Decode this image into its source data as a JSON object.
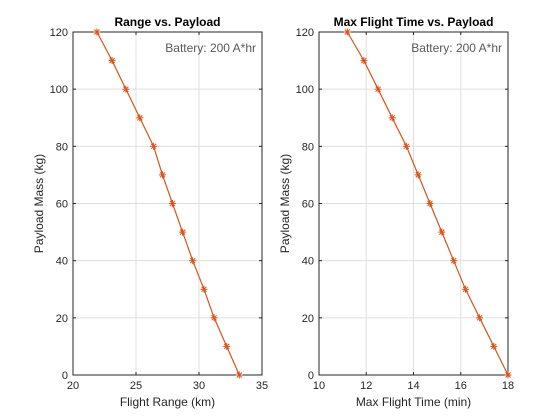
{
  "chart_data": [
    {
      "type": "line",
      "title": "Range vs. Payload",
      "xlabel": "Flight Range (km)",
      "ylabel": "Payload Mass (kg)",
      "xlim": [
        20,
        35
      ],
      "ylim": [
        0,
        120
      ],
      "xticks": [
        "20",
        "25",
        "30",
        "35"
      ],
      "yticks": [
        "0",
        "20",
        "40",
        "60",
        "80",
        "100",
        "120"
      ],
      "grid": true,
      "annotation": "Battery: 200 A*hr",
      "line_color": "#d95319",
      "marker": "asterisk",
      "x": [
        21.9,
        23.1,
        24.2,
        25.3,
        26.4,
        27.1,
        27.9,
        28.7,
        29.5,
        30.4,
        31.2,
        32.2,
        33.2
      ],
      "y": [
        120,
        110,
        100,
        90,
        80,
        70,
        60,
        50,
        40,
        30,
        20,
        10,
        0
      ]
    },
    {
      "type": "line",
      "title": "Max Flight Time vs. Payload",
      "xlabel": "Max Flight Time (min)",
      "ylabel": "Payload Mass (kg)",
      "xlim": [
        10,
        18
      ],
      "ylim": [
        0,
        120
      ],
      "xticks": [
        "10",
        "12",
        "14",
        "16",
        "18"
      ],
      "yticks": [
        "0",
        "20",
        "40",
        "60",
        "80",
        "100",
        "120"
      ],
      "grid": true,
      "annotation": "Battery: 200 A*hr",
      "line_color": "#d95319",
      "marker": "asterisk",
      "x": [
        11.2,
        11.9,
        12.5,
        13.1,
        13.7,
        14.2,
        14.7,
        15.2,
        15.7,
        16.2,
        16.8,
        17.4,
        18.0
      ],
      "y": [
        120,
        110,
        100,
        90,
        80,
        70,
        60,
        50,
        40,
        30,
        20,
        10,
        0
      ]
    }
  ]
}
